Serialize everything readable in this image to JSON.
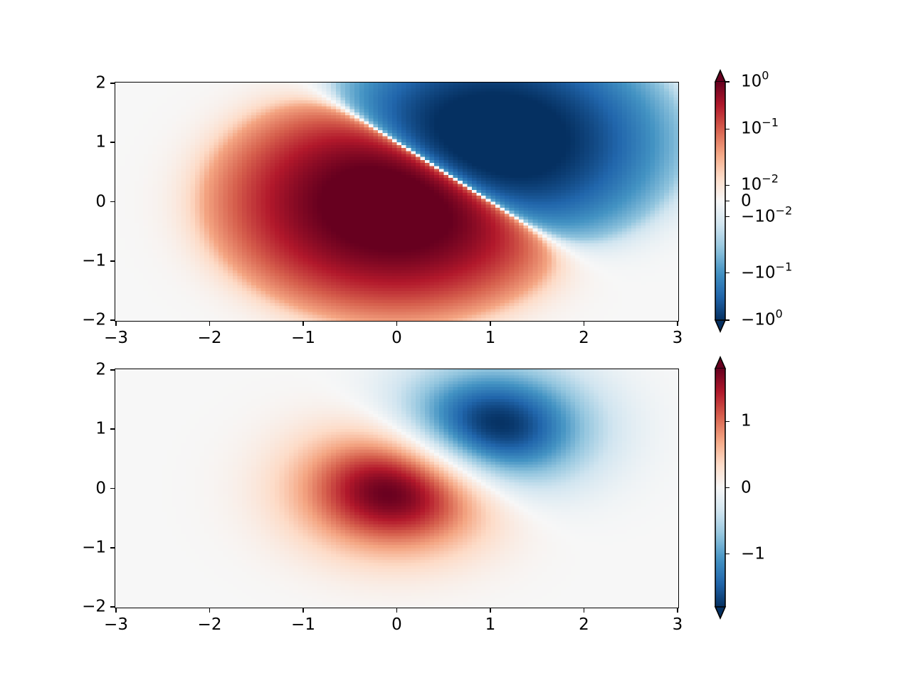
{
  "chart_data": [
    {
      "type": "heatmap",
      "title": "",
      "xlabel": "",
      "ylabel": "",
      "norm": "symlog",
      "colormap": "RdBu_r",
      "function": "Z = 2*(exp(-X^2 - Y^2) - exp(-(X-1)^2 - (Y-1)^2))",
      "grid": false,
      "xlim": [
        -3,
        3
      ],
      "ylim": [
        -2,
        2
      ],
      "x_ticks": [
        "−3",
        "−2",
        "−1",
        "0",
        "1",
        "2",
        "3"
      ],
      "y_ticks": [
        "2",
        "1",
        "0",
        "−1",
        "−2"
      ],
      "colorbar": {
        "vmin": -1.0,
        "vmax": 1.0,
        "linthresh": 0.03,
        "extend": "both",
        "ticks": [
          {
            "value": 1.0,
            "label": "10",
            "exp": "0"
          },
          {
            "value": 0.1,
            "label": "10",
            "exp": "−1"
          },
          {
            "value": 0.01,
            "label": "10",
            "exp": "−2"
          },
          {
            "value": 0.0,
            "label": "0",
            "exp": ""
          },
          {
            "value": -0.01,
            "label": "−10",
            "exp": "−2"
          },
          {
            "value": -0.1,
            "label": "−10",
            "exp": "−1"
          },
          {
            "value": -1.0,
            "label": "−10",
            "exp": "0"
          }
        ]
      }
    },
    {
      "type": "heatmap",
      "title": "",
      "xlabel": "",
      "ylabel": "",
      "norm": "linear",
      "colormap": "RdBu_r",
      "function": "Z = 2*(exp(-X^2 - Y^2) - exp(-(X-1)^2 - (Y-1)^2))",
      "grid": false,
      "xlim": [
        -3,
        3
      ],
      "ylim": [
        -2,
        2
      ],
      "x_ticks": [
        "−3",
        "−2",
        "−1",
        "0",
        "1",
        "2",
        "3"
      ],
      "y_ticks": [
        "2",
        "1",
        "0",
        "−1",
        "−2"
      ],
      "colorbar": {
        "vmin": -1.8,
        "vmax": 1.8,
        "extend": "both",
        "ticks": [
          {
            "value": 1,
            "label": "1",
            "exp": ""
          },
          {
            "value": 0,
            "label": "0",
            "exp": ""
          },
          {
            "value": -1,
            "label": "−1",
            "exp": ""
          }
        ]
      }
    }
  ],
  "colors": {
    "cmap_stops": [
      "#053061",
      "#2166ac",
      "#4393c3",
      "#92c5de",
      "#d1e5f0",
      "#f7f7f7",
      "#fddbc7",
      "#f4a582",
      "#d6604d",
      "#b2182b",
      "#67001f"
    ],
    "axis": "#000000",
    "background": "#ffffff"
  }
}
